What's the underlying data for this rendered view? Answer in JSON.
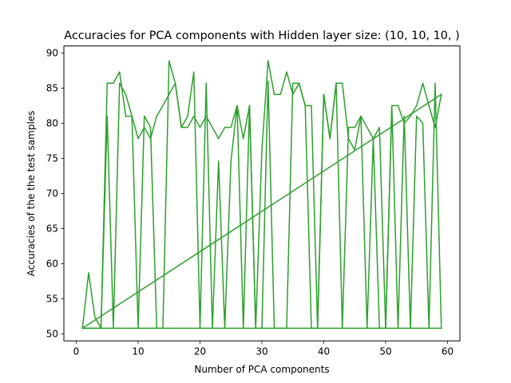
{
  "chart_data": {
    "type": "line",
    "title": "Accuracies for PCA components with Hidden layer size: (10, 10, 10, )",
    "xlabel": "Number of PCA components",
    "ylabel": "Accuracies of the the test samples",
    "xlim": [
      -2,
      62
    ],
    "ylim": [
      49,
      91
    ],
    "xticks": [
      0,
      10,
      20,
      30,
      40,
      50,
      60
    ],
    "yticks": [
      50,
      55,
      60,
      65,
      70,
      75,
      80,
      85,
      90
    ],
    "grid": false,
    "series": [
      {
        "color": "#2ca02c",
        "x": [
          1,
          2,
          3,
          4,
          5,
          6,
          7,
          8,
          9,
          10,
          11,
          12,
          13,
          14,
          15,
          16,
          17,
          18,
          19,
          20,
          21,
          22,
          23,
          24,
          25,
          26,
          27,
          28,
          29,
          30,
          31,
          32,
          33,
          34,
          35,
          36,
          37,
          38,
          39,
          40,
          41,
          42,
          43,
          44,
          45,
          46,
          47,
          48,
          49,
          50,
          51,
          52,
          53,
          54,
          55,
          56,
          57,
          58,
          59
        ],
        "values": [
          50.8,
          58.7,
          52.4,
          50.8,
          85.7,
          85.7,
          87.3,
          81.0,
          81.0,
          77.8,
          79.4,
          77.8,
          81.0,
          82.5,
          84.1,
          85.7,
          79.4,
          79.4,
          81.0,
          79.4,
          81.0,
          79.4,
          77.8,
          79.4,
          79.4,
          82.5,
          77.8,
          82.5,
          50.8,
          76.2,
          88.9,
          84.1,
          84.1,
          87.3,
          84.1,
          85.7,
          82.5,
          82.5,
          50.8,
          84.1,
          77.8,
          85.7,
          85.7,
          77.8,
          76.2,
          81.0,
          79.4,
          77.8,
          79.4,
          50.8,
          82.5,
          82.5,
          80.0,
          81.0,
          82.5,
          85.7,
          82.5,
          79.4,
          84.1
        ]
      },
      {
        "color": "#2ca02c",
        "x": [
          1,
          2,
          3,
          4,
          5,
          6,
          7,
          8,
          9,
          10,
          11,
          12,
          13,
          14,
          15,
          16,
          17,
          18,
          19,
          20,
          21,
          22,
          23,
          24,
          25,
          26,
          27,
          28,
          29,
          30,
          31,
          32,
          33,
          34,
          35,
          36,
          37,
          38,
          39,
          40,
          41,
          42,
          43,
          44,
          45,
          46,
          47,
          48,
          49,
          50,
          51,
          52,
          53,
          54,
          55,
          56,
          57,
          58,
          59
        ],
        "values": [
          50.8,
          50.8,
          50.8,
          50.8,
          81.0,
          50.8,
          85.7,
          84.1,
          81.0,
          50.8,
          81.0,
          79.4,
          50.8,
          50.8,
          88.9,
          85.7,
          79.4,
          81.0,
          87.3,
          50.8,
          85.7,
          50.8,
          74.6,
          50.8,
          74.6,
          82.5,
          50.8,
          82.5,
          50.8,
          50.8,
          86.0,
          50.8,
          50.8,
          50.8,
          85.7,
          85.7,
          82.5,
          50.8,
          50.8,
          84.1,
          77.8,
          85.7,
          50.8,
          79.4,
          79.4,
          81.0,
          50.8,
          77.8,
          50.8,
          50.8,
          82.5,
          50.8,
          81.0,
          50.8,
          81.0,
          80.0,
          50.8,
          85.7,
          50.8
        ]
      },
      {
        "color": "#2ca02c",
        "x": [
          1,
          59
        ],
        "values": [
          50.8,
          84.1
        ]
      },
      {
        "color": "#2ca02c",
        "x": [
          1,
          59
        ],
        "values": [
          50.8,
          50.8
        ]
      }
    ]
  }
}
